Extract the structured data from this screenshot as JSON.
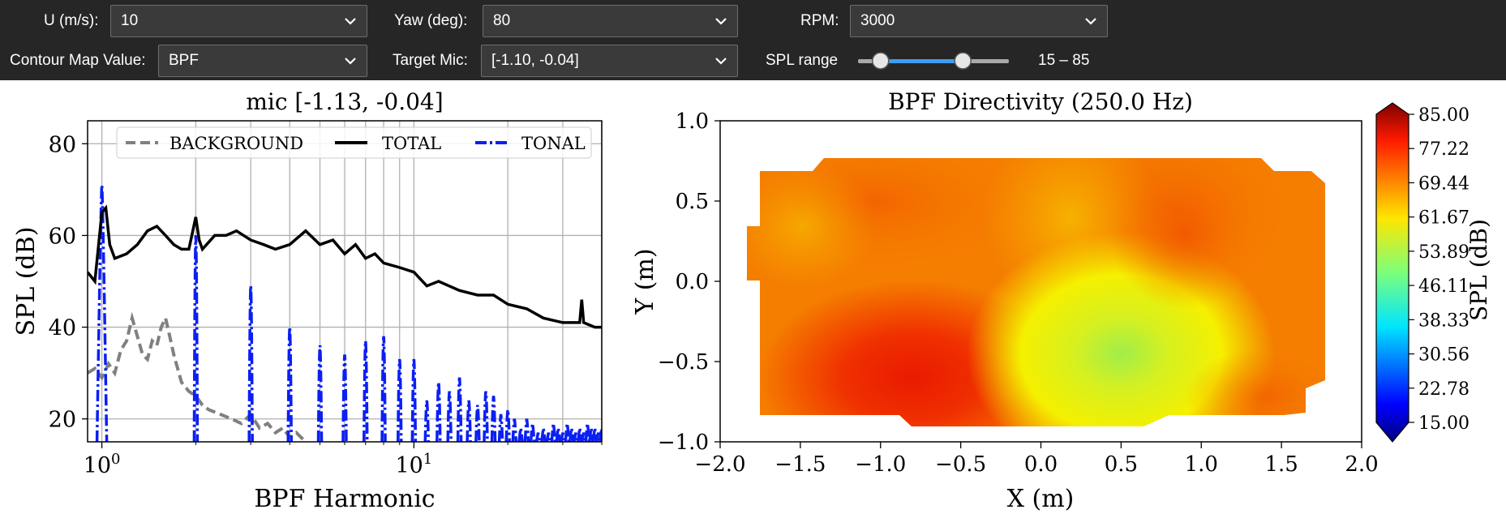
{
  "controls": {
    "wind_speed": {
      "label": "U (m/s):",
      "value": "10"
    },
    "yaw": {
      "label": "Yaw (deg):",
      "value": "80"
    },
    "rpm": {
      "label": "RPM:",
      "value": "3000"
    },
    "contour": {
      "label": "Contour Map Value:",
      "value": "BPF"
    },
    "target_mic": {
      "label": "Target Mic:",
      "value": "[-1.10, -0.04]"
    },
    "spl_range": {
      "label": "SPL range",
      "low": 15,
      "high": 85,
      "min": 0,
      "max": 120,
      "text": "15 – 85"
    }
  },
  "colors": {
    "toolbar_bg": "#262626",
    "slider_fill": "#3d9df3",
    "background_series": "#808080",
    "total_series": "#000000",
    "tonal_series": "#0b1ff5"
  },
  "chart_data": [
    {
      "type": "line",
      "title": "mic [-1.13, -0.04]",
      "xlabel": "BPF Harmonic",
      "ylabel": "SPL (dB)",
      "xscale": "log",
      "xlim": [
        0.9,
        40
      ],
      "ylim": [
        15,
        85
      ],
      "yticks": [
        20,
        40,
        60,
        80
      ],
      "xticklabels": [
        "10^0",
        "10^1"
      ],
      "legend_position": "top",
      "grid": true,
      "series": [
        {
          "name": "BACKGROUND",
          "style": "dashed",
          "color": "#808080",
          "x": [
            0.9,
            0.95,
            1.0,
            1.05,
            1.1,
            1.15,
            1.2,
            1.25,
            1.3,
            1.35,
            1.4,
            1.45,
            1.5,
            1.55,
            1.6,
            1.65,
            1.7,
            1.8,
            1.9,
            2.0,
            2.1,
            2.2,
            2.4,
            2.6,
            2.8,
            3.0,
            3.2,
            3.4,
            3.6,
            3.8,
            4.0,
            4.2,
            4.5
          ],
          "y": [
            30,
            31,
            29,
            32,
            30,
            35,
            37,
            42,
            38,
            34,
            33,
            37,
            36,
            40,
            42,
            38,
            34,
            28,
            26,
            25,
            23,
            22,
            21,
            20,
            19,
            21,
            18,
            19,
            17,
            18,
            16,
            17,
            15
          ]
        },
        {
          "name": "TOTAL",
          "style": "solid",
          "color": "#000000",
          "x": [
            0.9,
            0.95,
            1.0,
            1.03,
            1.06,
            1.1,
            1.2,
            1.3,
            1.4,
            1.5,
            1.6,
            1.7,
            1.8,
            1.9,
            2.0,
            2.05,
            2.1,
            2.3,
            2.5,
            2.7,
            3.0,
            3.3,
            3.6,
            4.0,
            4.5,
            5.0,
            5.5,
            6.0,
            6.5,
            7.0,
            7.5,
            8.0,
            9.0,
            10.0,
            11.0,
            12.0,
            14.0,
            16.0,
            18.0,
            20.0,
            23.0,
            26.0,
            30.0,
            34.0,
            34.5,
            35.0,
            38.0,
            40.0
          ],
          "y": [
            52,
            50,
            65,
            66,
            58,
            55,
            56,
            58,
            61,
            62,
            60,
            58,
            57,
            57,
            64,
            59,
            57,
            60,
            60,
            61,
            59,
            58,
            57,
            58,
            61,
            58,
            59,
            56,
            58,
            55,
            56,
            54,
            53,
            52,
            49,
            50,
            48,
            47,
            47,
            45,
            44,
            42,
            41,
            41,
            46,
            41,
            40,
            40
          ]
        },
        {
          "name": "TONAL",
          "style": "dash-dot",
          "color": "#0b1ff5",
          "peaks_x": [
            1,
            2,
            3,
            4,
            5,
            6,
            7,
            8,
            9,
            10,
            11,
            12,
            13,
            14,
            15,
            16,
            17,
            18,
            19,
            20,
            21,
            22,
            23,
            24,
            25,
            26,
            27,
            28,
            29,
            30,
            31,
            32,
            33,
            34,
            35,
            36,
            37,
            38,
            39,
            40
          ],
          "peaks_y": [
            71,
            60,
            49,
            40,
            36,
            34,
            37,
            38,
            33,
            33,
            24,
            28,
            26,
            29,
            24,
            23,
            26,
            25,
            21,
            22,
            20,
            18,
            20,
            19,
            17,
            18,
            17,
            19,
            18,
            17,
            19,
            18,
            17,
            18,
            17,
            19,
            18,
            18,
            17,
            18
          ]
        }
      ]
    },
    {
      "type": "heatmap",
      "title": "BPF Directivity (250.0 Hz)",
      "xlabel": "X (m)",
      "ylabel": "Y (m)",
      "xlim": [
        -2.0,
        2.0
      ],
      "ylim": [
        -1.0,
        1.0
      ],
      "xticks": [
        "−2.0",
        "−1.5",
        "−1.0",
        "−0.5",
        "0.0",
        "0.5",
        "1.0",
        "1.5",
        "2.0"
      ],
      "yticks": [
        "1.0",
        "0.5",
        "0.0",
        "−0.5",
        "−1.0"
      ],
      "colorbar_label": "SPL (dB)",
      "colorbar_ticks": [
        "85.00",
        "77.22",
        "69.44",
        "61.67",
        "53.89",
        "46.11",
        "38.33",
        "30.56",
        "22.78",
        "15.00"
      ],
      "colormap": "jet",
      "vmin": 15,
      "vmax": 85,
      "features": [
        {
          "x": -0.8,
          "y": -0.6,
          "spl": 80
        },
        {
          "x": 0.5,
          "y": -0.45,
          "spl": 52
        },
        {
          "x": 0.9,
          "y": 0.3,
          "spl": 71
        }
      ]
    }
  ]
}
